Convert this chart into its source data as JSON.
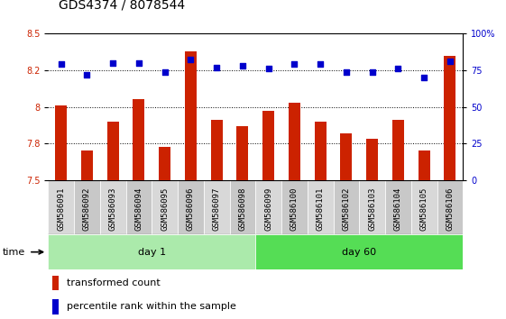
{
  "title": "GDS4374 / 8078544",
  "samples": [
    "GSM586091",
    "GSM586092",
    "GSM586093",
    "GSM586094",
    "GSM586095",
    "GSM586096",
    "GSM586097",
    "GSM586098",
    "GSM586099",
    "GSM586100",
    "GSM586101",
    "GSM586102",
    "GSM586103",
    "GSM586104",
    "GSM586105",
    "GSM586106"
  ],
  "red_values": [
    8.01,
    7.7,
    7.9,
    8.05,
    7.73,
    8.38,
    7.91,
    7.87,
    7.97,
    8.03,
    7.9,
    7.82,
    7.78,
    7.91,
    7.7,
    8.35
  ],
  "blue_values": [
    79,
    72,
    80,
    80,
    74,
    82,
    77,
    78,
    76,
    79,
    79,
    74,
    74,
    76,
    70,
    81
  ],
  "ylim_left": [
    7.5,
    8.5
  ],
  "ylim_right": [
    0,
    100
  ],
  "yticks_left": [
    7.5,
    7.75,
    8.0,
    8.25,
    8.5
  ],
  "yticks_right": [
    0,
    25,
    50,
    75,
    100
  ],
  "hlines": [
    7.75,
    8.0,
    8.25
  ],
  "day1_count": 8,
  "day60_count": 8,
  "group_labels": [
    "day 1",
    "day 60"
  ],
  "day1_color": "#abeaab",
  "day60_color": "#55dd55",
  "bar_color": "#CC2200",
  "dot_color": "#0000CC",
  "bar_bottom": 7.5,
  "xlabel_time": "time",
  "legend_red": "transformed count",
  "legend_blue": "percentile rank within the sample",
  "title_fontsize": 10,
  "tick_fontsize": 7,
  "label_fontsize": 8,
  "cell_color_even": "#d8d8d8",
  "cell_color_odd": "#c8c8c8"
}
